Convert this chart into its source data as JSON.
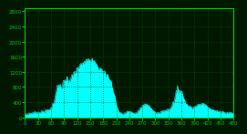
{
  "background_color": "#001800",
  "plot_bg_color": "#001800",
  "line_color": "#00FFFF",
  "grid_color": "#005500",
  "axis_color": "#00CC00",
  "tick_color": "#00CC00",
  "tick_label_color": "#00CC00",
  "ylim": [
    0,
    2880
  ],
  "xlim": [
    0,
    480
  ],
  "yticks": [
    0,
    400,
    800,
    1200,
    1600,
    2000,
    2400,
    2800
  ],
  "xticks": [
    0,
    30,
    60,
    90,
    120,
    150,
    180,
    210,
    240,
    270,
    300,
    330,
    360,
    390,
    420,
    450,
    480
  ],
  "profile": [
    [
      0,
      80
    ],
    [
      5,
      90
    ],
    [
      10,
      100
    ],
    [
      15,
      110
    ],
    [
      20,
      120
    ],
    [
      25,
      130
    ],
    [
      30,
      130
    ],
    [
      35,
      140
    ],
    [
      40,
      150
    ],
    [
      45,
      160
    ],
    [
      50,
      180
    ],
    [
      55,
      200
    ],
    [
      60,
      250
    ],
    [
      65,
      400
    ],
    [
      70,
      600
    ],
    [
      72,
      700
    ],
    [
      75,
      800
    ],
    [
      78,
      850
    ],
    [
      80,
      830
    ],
    [
      83,
      780
    ],
    [
      85,
      820
    ],
    [
      88,
      900
    ],
    [
      90,
      920
    ],
    [
      92,
      980
    ],
    [
      95,
      1000
    ],
    [
      98,
      960
    ],
    [
      100,
      950
    ],
    [
      103,
      980
    ],
    [
      105,
      1020
    ],
    [
      108,
      1080
    ],
    [
      110,
      1100
    ],
    [
      112,
      1150
    ],
    [
      115,
      1200
    ],
    [
      118,
      1250
    ],
    [
      120,
      1280
    ],
    [
      123,
      1300
    ],
    [
      125,
      1350
    ],
    [
      128,
      1380
    ],
    [
      130,
      1420
    ],
    [
      133,
      1460
    ],
    [
      135,
      1500
    ],
    [
      138,
      1530
    ],
    [
      140,
      1520
    ],
    [
      143,
      1560
    ],
    [
      145,
      1580
    ],
    [
      148,
      1540
    ],
    [
      150,
      1560
    ],
    [
      153,
      1490
    ],
    [
      155,
      1480
    ],
    [
      158,
      1440
    ],
    [
      160,
      1420
    ],
    [
      163,
      1380
    ],
    [
      165,
      1360
    ],
    [
      168,
      1320
    ],
    [
      170,
      1300
    ],
    [
      173,
      1280
    ],
    [
      175,
      1250
    ],
    [
      178,
      1220
    ],
    [
      180,
      1200
    ],
    [
      183,
      1180
    ],
    [
      185,
      1150
    ],
    [
      188,
      1120
    ],
    [
      190,
      1080
    ],
    [
      193,
      1020
    ],
    [
      195,
      980
    ],
    [
      198,
      900
    ],
    [
      200,
      820
    ],
    [
      203,
      700
    ],
    [
      205,
      580
    ],
    [
      208,
      440
    ],
    [
      210,
      320
    ],
    [
      213,
      220
    ],
    [
      215,
      160
    ],
    [
      218,
      120
    ],
    [
      220,
      100
    ],
    [
      223,
      90
    ],
    [
      225,
      80
    ],
    [
      228,
      100
    ],
    [
      230,
      110
    ],
    [
      233,
      130
    ],
    [
      235,
      140
    ],
    [
      238,
      160
    ],
    [
      240,
      150
    ],
    [
      243,
      140
    ],
    [
      245,
      130
    ],
    [
      248,
      120
    ],
    [
      250,
      110
    ],
    [
      253,
      100
    ],
    [
      255,
      110
    ],
    [
      258,
      130
    ],
    [
      260,
      160
    ],
    [
      263,
      200
    ],
    [
      265,
      240
    ],
    [
      268,
      280
    ],
    [
      270,
      300
    ],
    [
      273,
      320
    ],
    [
      275,
      340
    ],
    [
      278,
      360
    ],
    [
      280,
      350
    ],
    [
      283,
      320
    ],
    [
      285,
      300
    ],
    [
      288,
      260
    ],
    [
      290,
      220
    ],
    [
      293,
      180
    ],
    [
      295,
      150
    ],
    [
      298,
      130
    ],
    [
      300,
      120
    ],
    [
      303,
      110
    ],
    [
      305,
      110
    ],
    [
      308,
      120
    ],
    [
      310,
      130
    ],
    [
      313,
      140
    ],
    [
      315,
      150
    ],
    [
      318,
      160
    ],
    [
      320,
      170
    ],
    [
      323,
      180
    ],
    [
      325,
      190
    ],
    [
      328,
      200
    ],
    [
      330,
      210
    ],
    [
      333,
      230
    ],
    [
      335,
      260
    ],
    [
      338,
      320
    ],
    [
      340,
      400
    ],
    [
      343,
      500
    ],
    [
      345,
      580
    ],
    [
      348,
      640
    ],
    [
      350,
      700
    ],
    [
      353,
      720
    ],
    [
      355,
      730
    ],
    [
      358,
      700
    ],
    [
      360,
      650
    ],
    [
      363,
      580
    ],
    [
      365,
      500
    ],
    [
      368,
      420
    ],
    [
      370,
      360
    ],
    [
      373,
      320
    ],
    [
      375,
      300
    ],
    [
      378,
      290
    ],
    [
      380,
      280
    ],
    [
      383,
      270
    ],
    [
      385,
      260
    ],
    [
      388,
      270
    ],
    [
      390,
      280
    ],
    [
      393,
      300
    ],
    [
      395,
      310
    ],
    [
      398,
      320
    ],
    [
      400,
      330
    ],
    [
      403,
      340
    ],
    [
      405,
      350
    ],
    [
      408,
      360
    ],
    [
      410,
      350
    ],
    [
      413,
      340
    ],
    [
      415,
      330
    ],
    [
      418,
      310
    ],
    [
      420,
      290
    ],
    [
      423,
      260
    ],
    [
      425,
      240
    ],
    [
      428,
      220
    ],
    [
      430,
      200
    ],
    [
      433,
      190
    ],
    [
      435,
      180
    ],
    [
      438,
      170
    ],
    [
      440,
      160
    ],
    [
      443,
      150
    ],
    [
      445,
      140
    ],
    [
      448,
      150
    ],
    [
      450,
      160
    ],
    [
      453,
      150
    ],
    [
      455,
      140
    ],
    [
      458,
      130
    ],
    [
      460,
      120
    ],
    [
      463,
      110
    ],
    [
      465,
      110
    ],
    [
      468,
      120
    ],
    [
      470,
      130
    ],
    [
      473,
      120
    ],
    [
      475,
      110
    ],
    [
      478,
      100
    ],
    [
      480,
      90
    ]
  ]
}
